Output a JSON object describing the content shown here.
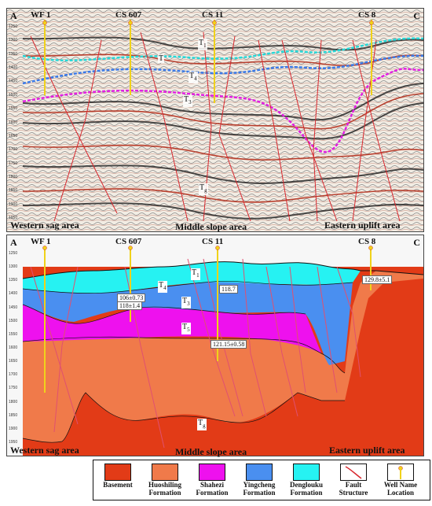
{
  "corners": {
    "left": "A",
    "right": "C"
  },
  "wells": [
    {
      "name": "WF 1"
    },
    {
      "name": "CS 607"
    },
    {
      "name": "CS 11"
    },
    {
      "name": "CS 8"
    }
  ],
  "areas": {
    "west": "Western sag area",
    "middle": "Middle slope area",
    "east": "Eastern uplift area"
  },
  "horizons": {
    "t1": "T",
    "t1_sub": "1",
    "t4": "T",
    "t4_sub": "4",
    "t3": "T",
    "t3_sub": "3",
    "t5": "T",
    "t5_sub": "5",
    "tg": "T",
    "tg_sub": "g",
    "top": "T",
    "top_sub": ""
  },
  "values": {
    "cs607_a": "106±0.73",
    "cs607_b": "118±1.4",
    "cs11_a": "118.7",
    "cs11_b": "121.15±0.58",
    "cs8_a": "129.8±5.1"
  },
  "legend": [
    {
      "l1": "Basement",
      "l2": "",
      "color": "#e23b17"
    },
    {
      "l1": "Huoshiling",
      "l2": "Formation",
      "color": "#f07a4a"
    },
    {
      "l1": "Shahezi",
      "l2": "Formation",
      "color": "#ee11ee"
    },
    {
      "l1": "Yingcheng",
      "l2": "Formation",
      "color": "#4a8ff0"
    },
    {
      "l1": "Denglouku",
      "l2": "Formation",
      "color": "#26f2f2"
    },
    {
      "l1": "Fault",
      "l2": "Structure",
      "color": "#ffffff"
    },
    {
      "l1": "Well Name",
      "l2": "Location",
      "color": "#ffffff"
    }
  ],
  "depth_ticks": [
    "1250",
    "1300",
    "1350",
    "1400",
    "1450",
    "1500",
    "1550",
    "1600",
    "1650",
    "1700",
    "1750",
    "1800",
    "1850",
    "1900",
    "1950"
  ]
}
